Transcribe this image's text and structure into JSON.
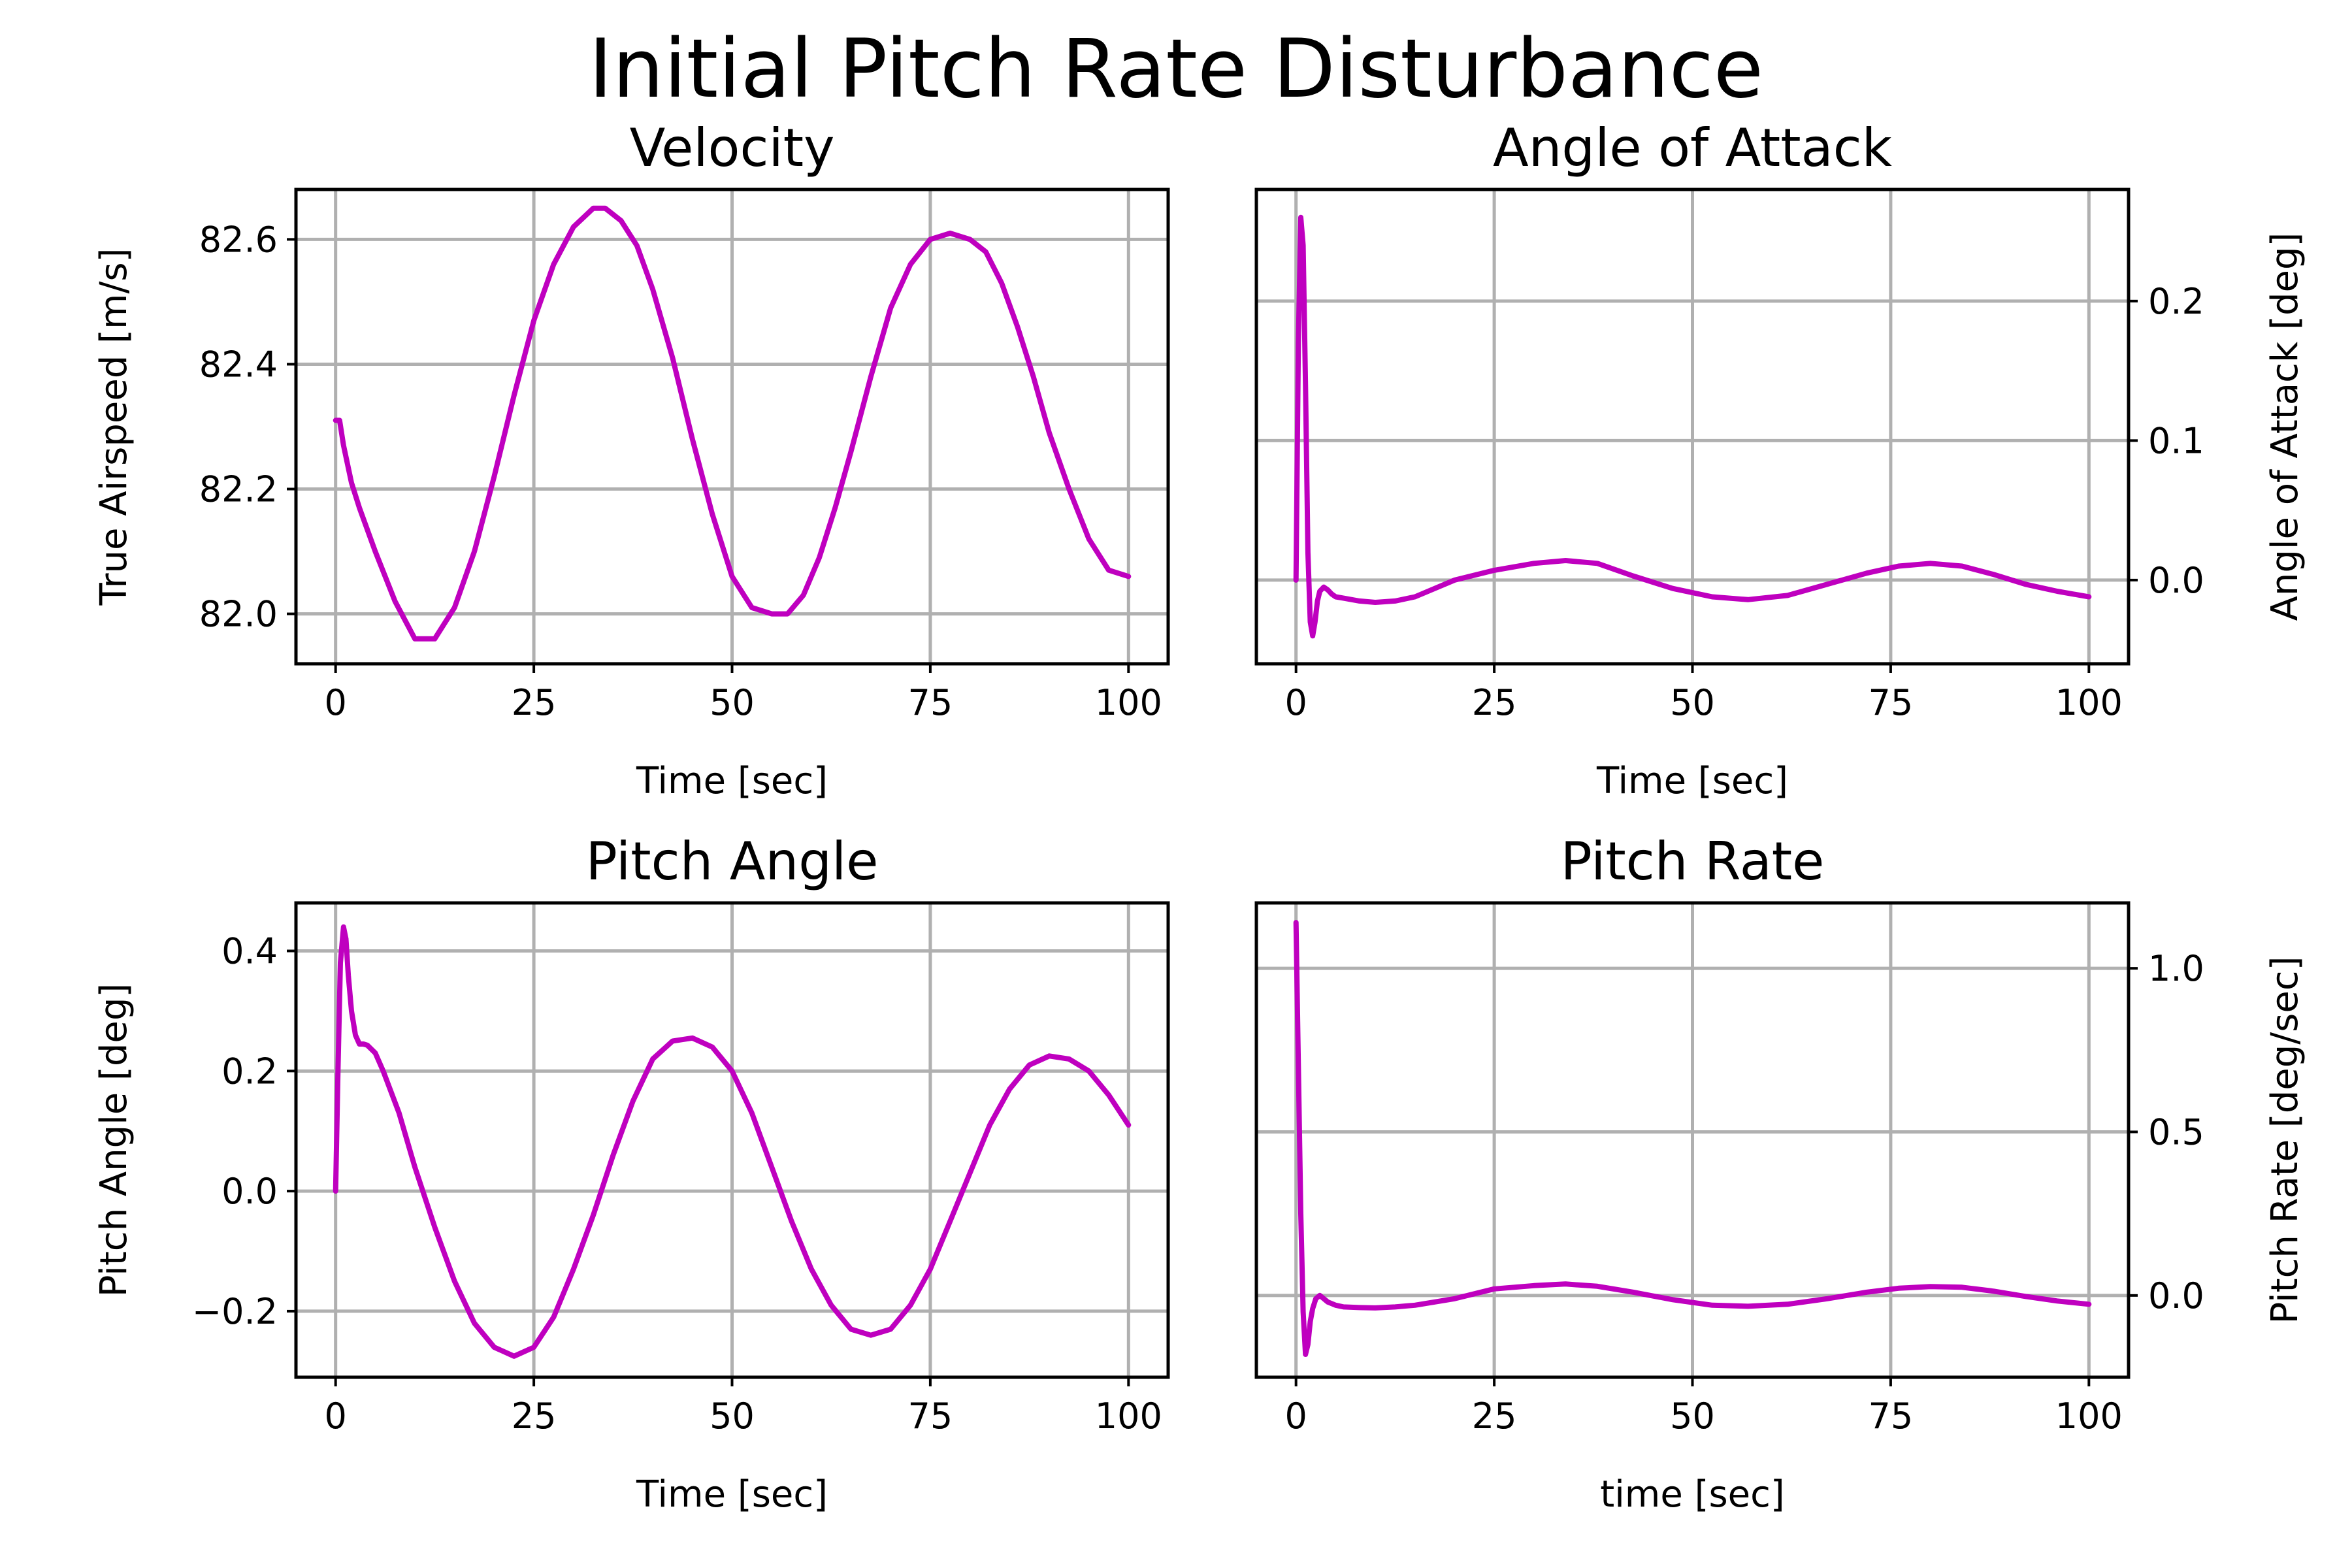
{
  "title": "Initial Pitch Rate Disturbance",
  "colors": {
    "series": "#bf00bf",
    "grid": "#b0b0b0",
    "axes": "#000000"
  },
  "chart_data": [
    {
      "type": "line",
      "title": "Velocity",
      "xlabel": "Time [sec]",
      "ylabel": "True Airspeed [m/s]",
      "yaxis_side": "left",
      "grid": true,
      "xlim": [
        -5,
        105
      ],
      "ylim": [
        81.92,
        82.68
      ],
      "xticks": [
        0,
        25,
        50,
        75,
        100
      ],
      "xtick_labels": [
        "0",
        "25",
        "50",
        "75",
        "100"
      ],
      "yticks": [
        82.0,
        82.2,
        82.4,
        82.6
      ],
      "ytick_labels": [
        "82.0",
        "82.2",
        "82.4",
        "82.6"
      ],
      "series": [
        {
          "x": [
            0,
            0.5,
            1,
            2,
            3,
            5,
            7.5,
            10,
            12.5,
            15,
            17.5,
            20,
            22.5,
            25,
            27.5,
            30,
            32.5,
            34,
            36,
            38,
            40,
            42.5,
            45,
            47.5,
            50,
            52.5,
            55,
            57,
            59,
            61,
            63,
            65,
            67.5,
            70,
            72.5,
            75,
            77.5,
            80,
            82,
            84,
            86,
            88,
            90,
            92.5,
            95,
            97.5,
            100
          ],
          "y": [
            82.31,
            82.31,
            82.27,
            82.21,
            82.17,
            82.1,
            82.02,
            81.96,
            81.96,
            82.01,
            82.1,
            82.22,
            82.35,
            82.47,
            82.56,
            82.62,
            82.65,
            82.65,
            82.63,
            82.59,
            82.52,
            82.41,
            82.28,
            82.16,
            82.06,
            82.01,
            82.0,
            82.0,
            82.03,
            82.09,
            82.17,
            82.26,
            82.38,
            82.49,
            82.56,
            82.6,
            82.61,
            82.6,
            82.58,
            82.53,
            82.46,
            82.38,
            82.29,
            82.2,
            82.12,
            82.07,
            82.06
          ]
        }
      ]
    },
    {
      "type": "line",
      "title": "Angle of Attack",
      "xlabel": "Time [sec]",
      "ylabel": "Angle of Attack [deg]",
      "yaxis_side": "right",
      "grid": true,
      "xlim": [
        -5,
        105
      ],
      "ylim": [
        -0.06,
        0.28
      ],
      "xticks": [
        0,
        25,
        50,
        75,
        100
      ],
      "xtick_labels": [
        "0",
        "25",
        "50",
        "75",
        "100"
      ],
      "yticks": [
        0.0,
        0.1,
        0.2
      ],
      "ytick_labels": [
        "0.0",
        "0.1",
        "0.2"
      ],
      "series": [
        {
          "x": [
            0,
            0.3,
            0.6,
            0.9,
            1.2,
            1.5,
            1.8,
            2.1,
            2.4,
            2.7,
            3.0,
            3.5,
            4,
            4.5,
            5,
            6,
            8,
            10,
            12.5,
            15,
            20,
            25,
            30,
            34,
            38,
            42.5,
            47.5,
            52.5,
            57,
            62,
            67,
            72,
            76,
            80,
            84,
            88,
            92,
            96,
            100
          ],
          "y": [
            0.0,
            0.17,
            0.26,
            0.24,
            0.14,
            0.02,
            -0.03,
            -0.04,
            -0.03,
            -0.015,
            -0.008,
            -0.005,
            -0.007,
            -0.01,
            -0.012,
            -0.013,
            -0.015,
            -0.016,
            -0.015,
            -0.012,
            0.0,
            0.007,
            0.012,
            0.014,
            0.012,
            0.003,
            -0.006,
            -0.012,
            -0.014,
            -0.011,
            -0.003,
            0.005,
            0.01,
            0.012,
            0.01,
            0.004,
            -0.003,
            -0.008,
            -0.012
          ]
        }
      ]
    },
    {
      "type": "line",
      "title": "Pitch Angle",
      "xlabel": "Time [sec]",
      "ylabel": "Pitch Angle [deg]",
      "yaxis_side": "left",
      "grid": true,
      "xlim": [
        -5,
        105
      ],
      "ylim": [
        -0.31,
        0.48
      ],
      "xticks": [
        0,
        25,
        50,
        75,
        100
      ],
      "xtick_labels": [
        "0",
        "25",
        "50",
        "75",
        "100"
      ],
      "yticks": [
        -0.2,
        0.0,
        0.2,
        0.4
      ],
      "ytick_labels": [
        "−0.2",
        "0.0",
        "0.2",
        "0.4"
      ],
      "series": [
        {
          "x": [
            0,
            0.3,
            0.6,
            1.0,
            1.3,
            1.6,
            2.0,
            2.5,
            3.0,
            3.5,
            4,
            5,
            6,
            8,
            10,
            12.5,
            15,
            17.5,
            20,
            22.5,
            25,
            27.5,
            30,
            32.5,
            35,
            37.5,
            40,
            42.5,
            45,
            47.5,
            50,
            52.5,
            55,
            57.5,
            60,
            62.5,
            65,
            67.5,
            70,
            72.5,
            75,
            77.5,
            80,
            82.5,
            85,
            87.5,
            90,
            92.5,
            95,
            97.5,
            100
          ],
          "y": [
            0.0,
            0.2,
            0.38,
            0.44,
            0.42,
            0.36,
            0.3,
            0.26,
            0.245,
            0.245,
            0.243,
            0.23,
            0.2,
            0.13,
            0.04,
            -0.06,
            -0.15,
            -0.22,
            -0.26,
            -0.275,
            -0.26,
            -0.21,
            -0.13,
            -0.04,
            0.06,
            0.15,
            0.22,
            0.25,
            0.255,
            0.24,
            0.2,
            0.13,
            0.04,
            -0.05,
            -0.13,
            -0.19,
            -0.23,
            -0.24,
            -0.23,
            -0.19,
            -0.13,
            -0.05,
            0.03,
            0.11,
            0.17,
            0.21,
            0.225,
            0.22,
            0.2,
            0.16,
            0.11
          ]
        }
      ]
    },
    {
      "type": "line",
      "title": "Pitch Rate",
      "xlabel": "time [sec]",
      "ylabel": "Pitch Rate [deg/sec]",
      "yaxis_side": "right",
      "grid": true,
      "xlim": [
        -5,
        105
      ],
      "ylim": [
        -0.25,
        1.2
      ],
      "xticks": [
        0,
        25,
        50,
        75,
        100
      ],
      "xtick_labels": [
        "0",
        "25",
        "50",
        "75",
        "100"
      ],
      "yticks": [
        0.0,
        0.5,
        1.0
      ],
      "ytick_labels": [
        "0.0",
        "0.5",
        "1.0"
      ],
      "series": [
        {
          "x": [
            0,
            0.3,
            0.6,
            0.9,
            1.2,
            1.5,
            1.8,
            2.1,
            2.5,
            3.0,
            3.5,
            4,
            5,
            6,
            8,
            10,
            12.5,
            15,
            20,
            25,
            30,
            34,
            38,
            42.5,
            47.5,
            52.5,
            57,
            62,
            67,
            72,
            76,
            80,
            84,
            88,
            92,
            96,
            100
          ],
          "y": [
            1.14,
            0.7,
            0.25,
            -0.05,
            -0.18,
            -0.15,
            -0.08,
            -0.04,
            -0.01,
            0.0,
            -0.01,
            -0.02,
            -0.03,
            -0.035,
            -0.037,
            -0.038,
            -0.035,
            -0.03,
            -0.01,
            0.02,
            0.03,
            0.035,
            0.028,
            0.01,
            -0.013,
            -0.03,
            -0.033,
            -0.027,
            -0.01,
            0.01,
            0.022,
            0.027,
            0.025,
            0.013,
            -0.003,
            -0.017,
            -0.027
          ]
        }
      ]
    }
  ]
}
